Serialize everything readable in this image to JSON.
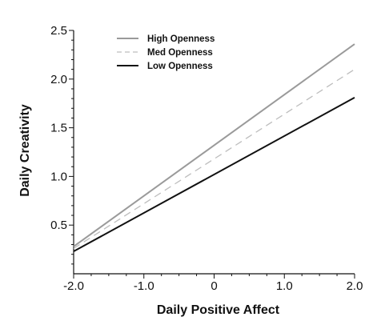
{
  "chart_data": {
    "type": "line",
    "title": "",
    "xlabel": "Daily Positive Affect",
    "ylabel": "Daily Creativity",
    "xlim": [
      -2.0,
      2.0
    ],
    "ylim": [
      0.0,
      2.5
    ],
    "x_ticks": [
      -2.0,
      -1.0,
      0,
      1.0,
      2.0
    ],
    "x_tick_labels": [
      "-2.0",
      "-1.0",
      "0",
      "1.0",
      "2.0"
    ],
    "x_minor_step": 0.25,
    "y_ticks": [
      0.5,
      1.0,
      1.5,
      2.0,
      2.5
    ],
    "y_tick_labels": [
      "0.5",
      "1.0",
      "1.5",
      "2.0",
      "2.5"
    ],
    "y_minor_step": 0.1,
    "grid": false,
    "legend_position": "top-left",
    "series": [
      {
        "name": "High Openness",
        "x": [
          -2.0,
          2.0
        ],
        "y": [
          0.28,
          2.36
        ],
        "color": "#9a9a9a",
        "style": "solid"
      },
      {
        "name": "Med Openness",
        "x": [
          -2.0,
          2.0
        ],
        "y": [
          0.26,
          2.1
        ],
        "color": "#bdbdbd",
        "style": "dashed"
      },
      {
        "name": "Low Openness",
        "x": [
          -2.0,
          2.0
        ],
        "y": [
          0.23,
          1.81
        ],
        "color": "#111111",
        "style": "solid"
      }
    ]
  }
}
